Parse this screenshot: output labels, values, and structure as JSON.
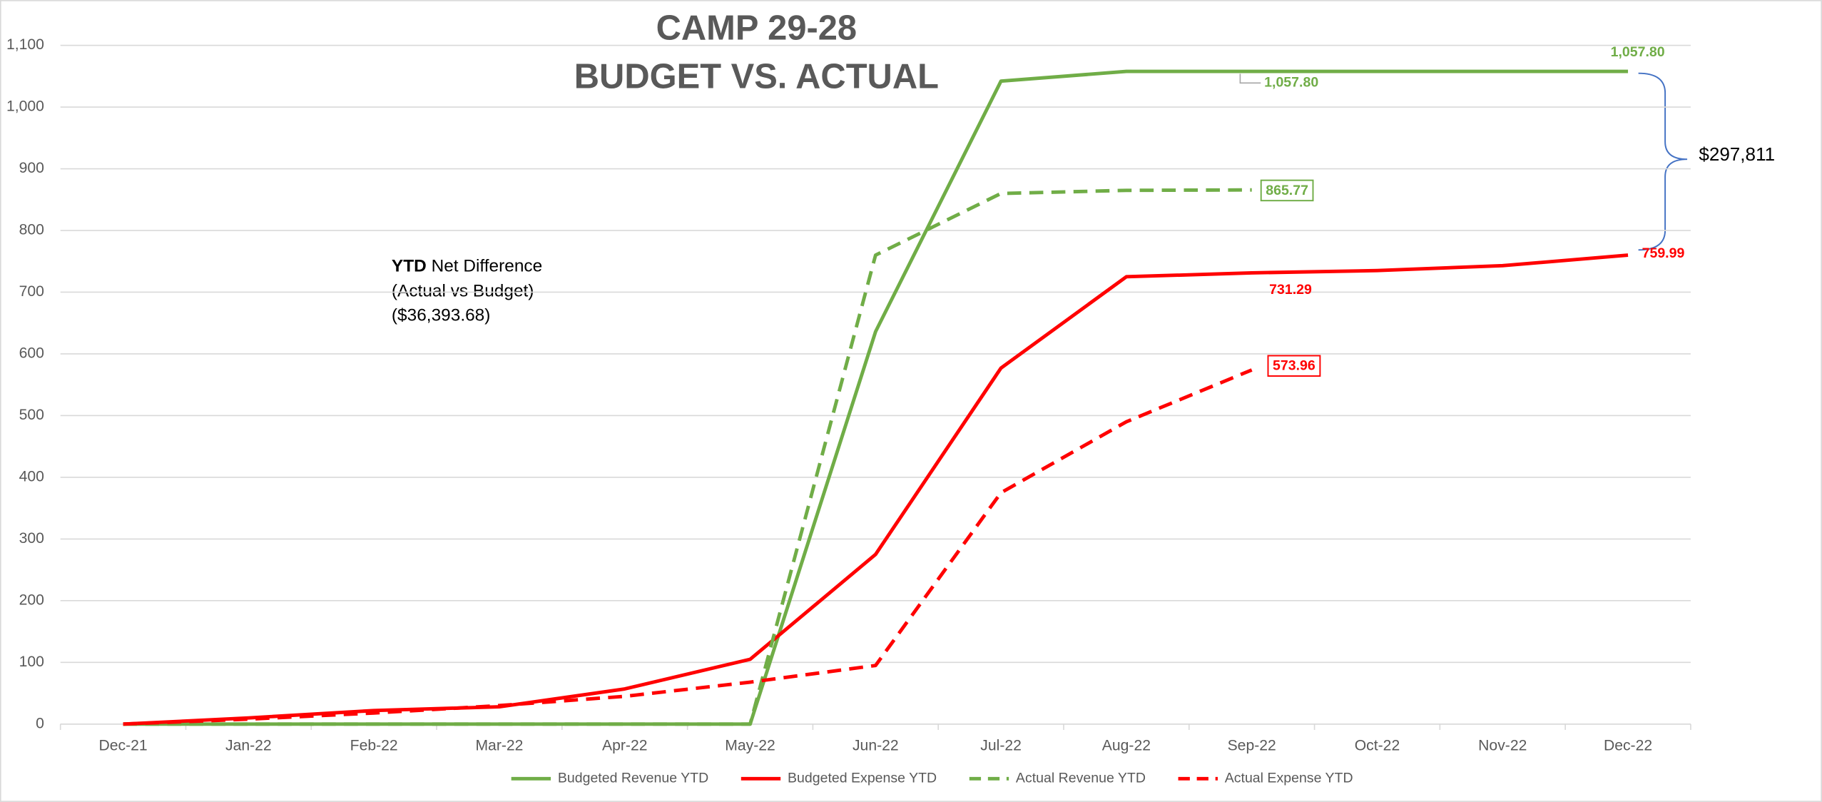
{
  "chart_data": {
    "type": "line",
    "title": "CAMP 29-28",
    "subtitle": "BUDGET VS. ACTUAL",
    "categories": [
      "Dec-21",
      "Jan-22",
      "Feb-22",
      "Mar-22",
      "Apr-22",
      "May-22",
      "Jun-22",
      "Jul-22",
      "Aug-22",
      "Sep-22",
      "Oct-22",
      "Nov-22",
      "Dec-22"
    ],
    "ylim": [
      0,
      1100
    ],
    "yticks": [
      0,
      100,
      200,
      300,
      400,
      500,
      600,
      700,
      800,
      900,
      {
        "value": 1000,
        "label": "1,000"
      },
      {
        "value": 1100,
        "label": "1,100"
      }
    ],
    "grid": true,
    "legend": "bottom",
    "series": [
      {
        "name": "Budgeted Revenue YTD",
        "color": "#70ad47",
        "dash": false,
        "values": [
          0,
          0,
          0,
          0,
          0,
          0,
          636,
          1042,
          1057.8,
          1057.8,
          1057.8,
          1057.8,
          1057.8
        ],
        "value_labels": [
          null,
          null,
          null,
          null,
          null,
          null,
          null,
          null,
          null,
          "1,057.80",
          null,
          null,
          "1,057.80"
        ]
      },
      {
        "name": "Budgeted Expense YTD",
        "color": "#ff0000",
        "dash": false,
        "values": [
          0,
          10,
          22,
          28,
          57,
          105,
          275,
          577,
          725,
          731.29,
          735,
          743,
          759.99
        ],
        "value_labels": [
          null,
          null,
          null,
          null,
          null,
          null,
          null,
          null,
          null,
          "731.29",
          null,
          null,
          "759.99"
        ]
      },
      {
        "name": "Actual Revenue YTD",
        "color": "#70ad47",
        "dash": true,
        "values": [
          0,
          0,
          0,
          0,
          0,
          0,
          760,
          860,
          865,
          865.77,
          null,
          null,
          null
        ],
        "value_labels": [
          null,
          null,
          null,
          null,
          null,
          null,
          null,
          null,
          null,
          "865.77",
          null,
          null,
          null
        ]
      },
      {
        "name": "Actual Expense YTD",
        "color": "#ff0000",
        "dash": true,
        "values": [
          0,
          8,
          18,
          30,
          45,
          68,
          95,
          375,
          490,
          573.96,
          null,
          null,
          null
        ],
        "value_labels": [
          null,
          null,
          null,
          null,
          null,
          null,
          null,
          null,
          null,
          "573.96",
          null,
          null,
          null
        ]
      }
    ],
    "annotations": [
      "YTD",
      "Net Difference",
      "(Actual vs Budget)",
      "($36,393.68)",
      "$297,811"
    ]
  }
}
